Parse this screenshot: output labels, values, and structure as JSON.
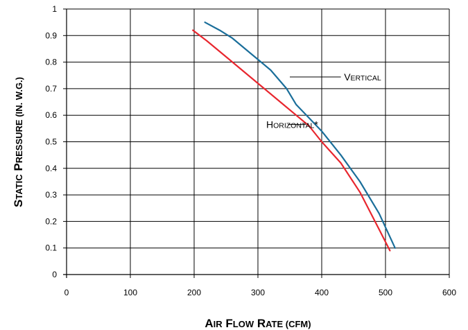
{
  "chart_data": {
    "type": "line",
    "xlabel": {
      "first": "A",
      "rest": "IR",
      "parts": [
        [
          "A",
          "IR"
        ],
        [
          "F",
          "LOW"
        ],
        [
          "R",
          "ATE"
        ]
      ],
      "unit": "(CFM)"
    },
    "ylabel": {
      "parts": [
        [
          "S",
          "TATIC"
        ],
        [
          "P",
          "RESSURE"
        ]
      ],
      "unit": "(IN. W.G.)"
    },
    "xlim": [
      0,
      600
    ],
    "ylim": [
      0,
      1
    ],
    "x_ticks": [
      0,
      100,
      200,
      300,
      400,
      500,
      600
    ],
    "y_ticks": [
      0,
      0.1,
      0.2,
      0.3,
      0.4,
      0.5,
      0.6,
      0.7,
      0.8,
      0.9,
      1
    ],
    "x_tick_labels": [
      "0",
      "100",
      "200",
      "300",
      "400",
      "500",
      "600"
    ],
    "y_tick_labels": [
      "0",
      "0.1",
      "0.2",
      "0.3",
      "0.4",
      "0.5",
      "0.6",
      "0.7",
      "0.8",
      "0.9",
      "1"
    ],
    "grid": true,
    "series": [
      {
        "name": "Vertical",
        "label_first": "V",
        "label_rest": "ERTICAL",
        "color": "#1a6e9a",
        "x": [
          217,
          240,
          260,
          290,
          320,
          345,
          360,
          380,
          400,
          430,
          460,
          490,
          515
        ],
        "y": [
          0.95,
          0.92,
          0.89,
          0.83,
          0.77,
          0.7,
          0.64,
          0.59,
          0.54,
          0.45,
          0.35,
          0.23,
          0.1
        ]
      },
      {
        "name": "Horizontal*",
        "label_first": "H",
        "label_rest": "ORIZONTAL",
        "label_suffix": "*",
        "color": "#e8262e",
        "x": [
          198,
          220,
          250,
          280,
          310,
          340,
          360,
          380,
          400,
          430,
          460,
          490,
          507
        ],
        "y": [
          0.92,
          0.88,
          0.82,
          0.76,
          0.7,
          0.64,
          0.6,
          0.56,
          0.5,
          0.42,
          0.31,
          0.17,
          0.09
        ]
      }
    ],
    "annotations": [
      {
        "series": "Vertical",
        "label_x": 435,
        "label_y": 0.744,
        "leader_from": [
          430,
          0.744
        ],
        "leader_to": [
          350,
          0.744
        ]
      },
      {
        "series": "Horizontal*",
        "label_x": 313,
        "label_y": 0.565,
        "leader_from": [
          347,
          0.565
        ],
        "leader_to": [
          375,
          0.565
        ]
      }
    ]
  }
}
